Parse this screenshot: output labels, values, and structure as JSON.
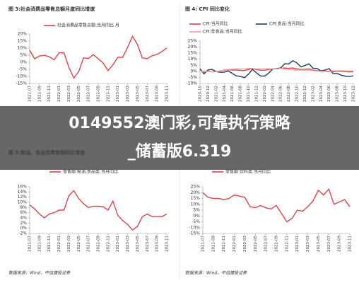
{
  "chart_data": [
    {
      "type": "line",
      "title": "图 3:社会消费品零售总额月度同比增速",
      "categories": [
        "2021-07",
        null,
        "2021-09",
        null,
        "2021-11",
        null,
        "2022-01",
        null,
        "2022-03",
        null,
        "2022-05",
        null,
        "2022-07",
        null,
        "2022-09",
        null,
        "2022-11",
        null,
        "2023-01",
        null,
        "2023-03",
        null,
        "2023-05",
        null,
        "2023-07",
        null,
        "2023-09",
        null,
        "2023-11"
      ],
      "series": [
        {
          "name": "社会消费品零售总额:当月同比 月",
          "color": "#d9434a",
          "values": [
            8.5,
            2.5,
            4.4,
            4.9,
            3.9,
            1.7,
            6.7,
            6.7,
            -3.5,
            -11.1,
            -6.7,
            3.1,
            2.7,
            5.4,
            2.5,
            -0.5,
            -5.9,
            -1.8,
            3.5,
            3.5,
            10.6,
            18.4,
            12.7,
            3.1,
            2.5,
            4.6,
            5.5,
            7.6,
            10.1
          ]
        }
      ],
      "ylim": [
        -15,
        20
      ],
      "yticks": [
        {
          "value": -15,
          "label": "-15%"
        },
        {
          "value": -10,
          "label": "-10%"
        },
        {
          "value": -5,
          "label": "-5%"
        },
        {
          "value": 0,
          "label": "0%"
        },
        {
          "value": 5,
          "label": "5%"
        },
        {
          "value": 10,
          "label": "10%"
        },
        {
          "value": 15,
          "label": "15%"
        },
        {
          "value": 20,
          "label": "20%"
        }
      ]
    },
    {
      "type": "line",
      "title": "图 4: CPI 同比变化",
      "categories": [
        "2020-10",
        null,
        "2020-12",
        null,
        "2021-02",
        null,
        "2021-04",
        null,
        "2021-06",
        null,
        "2021-08",
        null,
        "2021-10",
        null,
        "2021-12",
        null,
        "2022-02",
        null,
        "2022-04",
        null,
        "2022-06",
        null,
        "2022-08",
        null,
        "2022-10",
        null,
        "2022-12",
        null,
        "2023-02",
        null,
        "2023-04",
        null,
        "2023-06",
        null,
        "2023-08",
        null,
        "2023-10",
        null,
        "2023-12"
      ],
      "series": [
        {
          "name": "CPI:当月同比",
          "color": "#d9434a",
          "values": [
            0.5,
            -0.5,
            0.2,
            -0.3,
            -0.2,
            0.4,
            0.9,
            1.3,
            1.1,
            1.0,
            0.8,
            0.7,
            1.5,
            2.3,
            1.5,
            0.9,
            0.9,
            1.5,
            2.1,
            2.1,
            2.5,
            2.7,
            2.5,
            2.8,
            2.1,
            1.6,
            1.8,
            2.1,
            1.0,
            0.7,
            0.1,
            0.2,
            0,
            -0.3,
            0.1,
            0,
            -0.2,
            -0.5,
            -0.3
          ]
        },
        {
          "name": "CPI:食品:当月同比",
          "color": "#1f3864",
          "values": [
            2.2,
            -2.0,
            1.2,
            1.6,
            -0.2,
            -0.7,
            -0.7,
            0.3,
            -1.7,
            -3.7,
            -4.1,
            -5.2,
            -2.4,
            1.6,
            -1.2,
            -3.8,
            -3.9,
            -1.5,
            1.9,
            2.3,
            2.9,
            6.3,
            6.1,
            8.8,
            7.0,
            3.7,
            4.8,
            6.2,
            2.6,
            2.4,
            0.4,
            1.0,
            2.3,
            -1.7,
            -1.7,
            -3.2,
            -4.0,
            -4.2,
            -3.7
          ]
        },
        {
          "name": "CPI:非食品:当月同比",
          "color": "#f2a0a0",
          "values": [
            0.1,
            -0.1,
            0,
            -0.4,
            -0.3,
            0.3,
            1.2,
            1.6,
            1.8,
            2.1,
            2.0,
            2.0,
            2.4,
            2.4,
            2.0,
            2.0,
            2.1,
            2.2,
            2.1,
            1.9,
            2.5,
            1.9,
            1.6,
            1.5,
            1.1,
            1.1,
            1.1,
            1.2,
            0.6,
            0.3,
            0.1,
            0,
            -0.5,
            0.5,
            0.5,
            0.5,
            0.4,
            0.4,
            0.4
          ]
        }
      ],
      "ylim": [
        -10,
        25
      ],
      "yticks": [
        {
          "value": -10,
          "label": "-10%"
        },
        {
          "value": -5,
          "label": "-5%"
        },
        {
          "value": 0,
          "label": "0%"
        },
        {
          "value": 5,
          "label": "5%"
        },
        {
          "value": 10,
          "label": "10%"
        },
        {
          "value": 15,
          "label": "15%"
        },
        {
          "value": 20,
          "label": "20%"
        },
        {
          "value": 25,
          "label": "25%"
        }
      ]
    },
    {
      "type": "line",
      "title": "图 5:粮油、食品类零售额同比增速",
      "categories": [
        "2021-07",
        null,
        "2021-09",
        null,
        "2021-11",
        null,
        "2022-01",
        null,
        "2022-03",
        null,
        "2022-05",
        null,
        "2022-07",
        null,
        "2022-09",
        null,
        "2022-11",
        null,
        "2023-01",
        null,
        "2023-03",
        null,
        "2023-05",
        null,
        "2023-07",
        null,
        "2023-09",
        null,
        "2023-11"
      ],
      "series": [
        {
          "name": "零售额:粮油,食品类:当月同比",
          "color": "#d9434a",
          "values": [
            9,
            7.5,
            5.5,
            4,
            5.5,
            6,
            7,
            7,
            12.5,
            14.5,
            11.5,
            9.5,
            8,
            8.5,
            8.5,
            8.3,
            7,
            10.5,
            5,
            3,
            1.5,
            -0.7,
            0.7,
            4.5,
            5.5,
            4.5,
            4.5,
            4.5,
            5.5
          ]
        }
      ],
      "ylim": [
        -2,
        16
      ],
      "yticks": [
        {
          "value": -2,
          "label": "-2%"
        },
        {
          "value": 0,
          "label": "0%"
        },
        {
          "value": 2,
          "label": "2%"
        },
        {
          "value": 4,
          "label": "4%"
        },
        {
          "value": 6,
          "label": "6%"
        },
        {
          "value": 8,
          "label": "8%"
        },
        {
          "value": 10,
          "label": "10%"
        },
        {
          "value": 12,
          "label": "12%"
        },
        {
          "value": 14,
          "label": "14%"
        },
        {
          "value": 16,
          "label": "16%"
        }
      ],
      "source": "数据来源：Wind，中信建投证券"
    },
    {
      "type": "line",
      "categories": [
        "2021-07",
        null,
        "2021-09",
        null,
        "2021-11",
        null,
        "2022-01",
        null,
        "2022-03",
        null,
        "2022-05",
        null,
        "2022-07",
        null,
        "2022-09",
        null,
        "2022-11",
        null,
        "2023-01",
        null,
        "2023-03",
        null,
        "2023-05",
        null,
        "2023-07",
        null,
        "2023-09",
        null,
        "2023-11"
      ],
      "series": [
        {
          "name": "零售额:饮料类:当月同比",
          "color": "#d9434a",
          "values": [
            20,
            16,
            15,
            15,
            14,
            15,
            18,
            17,
            16,
            8,
            7,
            9,
            7,
            6,
            9,
            2,
            -5,
            -2,
            5,
            4,
            8,
            13,
            22,
            18,
            23,
            10,
            12,
            14,
            8
          ]
        }
      ],
      "ylim": [
        -15,
        25
      ],
      "yticks": [
        {
          "value": -15,
          "label": "-15%"
        },
        {
          "value": -10,
          "label": "-10%"
        },
        {
          "value": -5,
          "label": "-5%"
        },
        {
          "value": 0,
          "label": "0%"
        },
        {
          "value": 5,
          "label": "5%"
        },
        {
          "value": 10,
          "label": "10%"
        },
        {
          "value": 15,
          "label": "15%"
        },
        {
          "value": 20,
          "label": "20%"
        },
        {
          "value": 25,
          "label": "25%"
        }
      ],
      "source": "数据来源：Wind，中信建投证券"
    }
  ],
  "banner": {
    "line1": "0149552澳门彩,可靠执行策略",
    "line2": "_储蓄版6.319"
  }
}
